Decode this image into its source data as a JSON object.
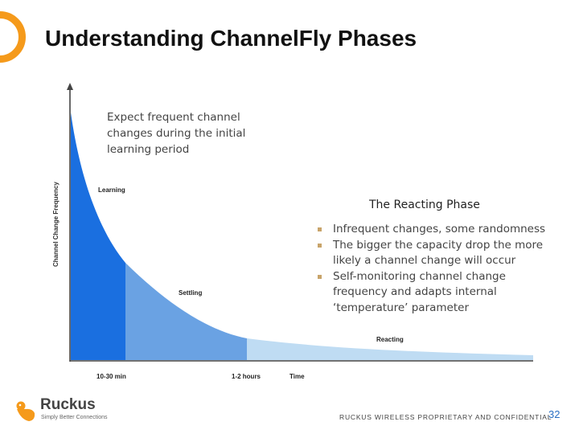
{
  "slide": {
    "title": "Understanding ChannelFly Phases",
    "note": "Expect frequent channel changes during the initial learning period",
    "reacting_heading": "The Reacting Phase",
    "bullets": [
      "Infrequent changes, some randomness",
      "The bigger the capacity drop the more likely a channel change will occur",
      "Self-monitoring channel change frequency and adapts internal ‘temperature’ parameter"
    ],
    "footer": "RUCKUS WIRELESS PROPRIETARY AND CONFIDENTIAL",
    "page_number": "32"
  },
  "diagram": {
    "y_axis_label": "Channel Change Frequency",
    "phases": [
      {
        "label": "Learning",
        "color": "#1a6fe0"
      },
      {
        "label": "Settling",
        "color": "#6aa2e3"
      },
      {
        "label": "Reacting",
        "color": "#bfdcf3"
      }
    ],
    "x_labels": [
      "10-30 min",
      "1-2 hours",
      "Time"
    ]
  },
  "logo": {
    "name": "Ruckus",
    "tagline": "Simply Better Connections"
  },
  "colors": {
    "accent_orange": "#f59a1b",
    "learning_blue": "#1a6fe0",
    "settling_blue": "#6aa2e3",
    "reacting_blue": "#bfdcf3",
    "page_number_blue": "#2a6fc2"
  }
}
